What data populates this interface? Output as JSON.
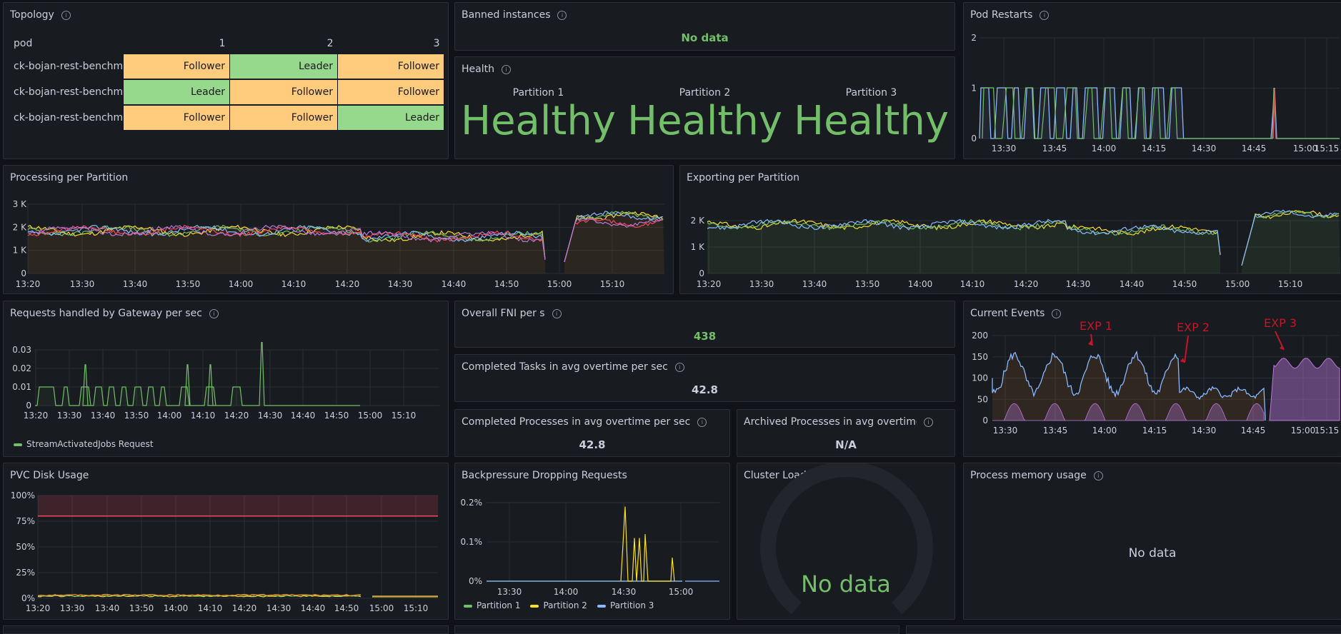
{
  "topology": {
    "title": "Topology",
    "headers": [
      "pod",
      "1",
      "2",
      "3"
    ],
    "rows": [
      {
        "pod": "ck-bojan-rest-benchm",
        "cells": [
          "Follower",
          "Leader",
          "Follower"
        ]
      },
      {
        "pod": "ck-bojan-rest-benchm",
        "cells": [
          "Leader",
          "Follower",
          "Follower"
        ]
      },
      {
        "pod": "ck-bojan-rest-benchm",
        "cells": [
          "Follower",
          "Follower",
          "Leader"
        ]
      }
    ]
  },
  "banned": {
    "title": "Banned instances",
    "value": "No data"
  },
  "health": {
    "title": "Health",
    "partitions": [
      {
        "label": "Partition 1",
        "value": "Healthy"
      },
      {
        "label": "Partition 2",
        "value": "Healthy"
      },
      {
        "label": "Partition 3",
        "value": "Healthy"
      }
    ]
  },
  "pod_restarts": {
    "title": "Pod Restarts",
    "y_ticks": [
      "2",
      "1",
      "0"
    ],
    "x_ticks": [
      "13:30",
      "13:45",
      "14:00",
      "14:15",
      "14:30",
      "14:45",
      "15:00",
      "15:15"
    ]
  },
  "processing": {
    "title": "Processing per Partition",
    "y_ticks": [
      "3 K",
      "2 K",
      "1 K",
      "0"
    ],
    "x_ticks": [
      "13:20",
      "13:30",
      "13:40",
      "13:50",
      "14:00",
      "14:10",
      "14:20",
      "14:30",
      "14:40",
      "14:50",
      "15:00",
      "15:10"
    ]
  },
  "exporting": {
    "title": "Exporting per Partition",
    "y_ticks": [
      "2 K",
      "1 K",
      "0"
    ],
    "x_ticks": [
      "13:20",
      "13:30",
      "13:40",
      "13:50",
      "14:00",
      "14:10",
      "14:20",
      "14:30",
      "14:40",
      "14:50",
      "15:00",
      "15:10"
    ]
  },
  "gateway": {
    "title": "Requests handled by Gateway per sec",
    "y_ticks": [
      "0.03",
      "0.02",
      "0.01",
      "0"
    ],
    "x_ticks": [
      "13:20",
      "13:30",
      "13:40",
      "13:50",
      "14:00",
      "14:10",
      "14:20",
      "14:30",
      "14:40",
      "14:50",
      "15:00",
      "15:10"
    ],
    "legend": "StreamActivatedJobs Request"
  },
  "fni": {
    "title": "Overall FNI per s",
    "value": "438"
  },
  "tasks": {
    "title": "Completed Tasks in avg overtime per sec",
    "value": "42.8"
  },
  "processes": {
    "title": "Completed Processes in avg overtime per sec",
    "value": "42.8"
  },
  "archived": {
    "title": "Archived Processes in avg overtime",
    "value": "N/A"
  },
  "events": {
    "title": "Current Events",
    "y_ticks": [
      "200",
      "150",
      "100",
      "50",
      "0"
    ],
    "x_ticks": [
      "13:30",
      "13:45",
      "14:00",
      "14:15",
      "14:30",
      "14:45",
      "15:00",
      "15:15"
    ],
    "annotations": [
      "EXP 1",
      "EXP 2",
      "EXP 3"
    ]
  },
  "pvc": {
    "title": "PVC Disk Usage",
    "y_ticks": [
      "100%",
      "75%",
      "50%",
      "25%",
      "0%"
    ],
    "x_ticks": [
      "13:20",
      "13:30",
      "13:40",
      "13:50",
      "14:00",
      "14:10",
      "14:20",
      "14:30",
      "14:40",
      "14:50",
      "15:00",
      "15:10"
    ]
  },
  "backpressure": {
    "title": "Backpressure Dropping Requests",
    "y_ticks": [
      "0.2%",
      "0.1%",
      "0%"
    ],
    "x_ticks": [
      "13:30",
      "14:00",
      "14:30",
      "15:00"
    ],
    "legend": [
      "Partition 1",
      "Partition 2",
      "Partition 3"
    ]
  },
  "cluster": {
    "title": "Cluster Load",
    "value": "No data"
  },
  "memory": {
    "title": "Process memory usage",
    "value": "No data"
  },
  "colors": {
    "green": "#73bf69",
    "yellow": "#fade2a",
    "blue": "#8ab8ff",
    "red": "#f2495c",
    "orange": "#ff9830",
    "purple": "#b877d9",
    "annot": "#c4162a"
  }
}
